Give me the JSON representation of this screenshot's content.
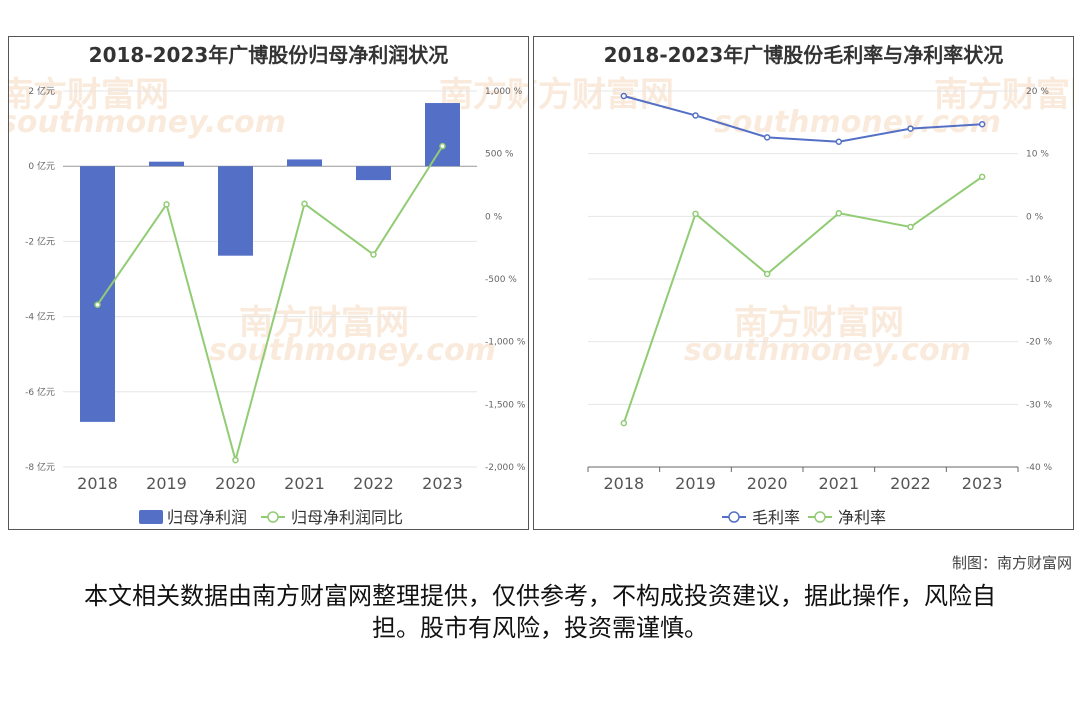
{
  "charts": {
    "left": {
      "title": "2018-2023年广博股份归母净利润状况",
      "legend": {
        "bar": "归母净利润",
        "line": "归母净利润同比"
      }
    },
    "right": {
      "title": "2018-2023年广博股份毛利率与净利率状况",
      "legend": {
        "gross": "毛利率",
        "net": "净利率"
      }
    }
  },
  "watermark": {
    "cn": "南方财富网",
    "en": "southmoney.com"
  },
  "credit": "制图：南方财富网",
  "disclaimer": "本文相关数据由南方财富网整理提供，仅供参考，不构成投资建议，据此操作，风险自担。股市有风险，投资需谨慎。",
  "colors": {
    "bar": "#5470c6",
    "line_green": "#91cc75",
    "line_blue": "#5470c6"
  },
  "chart_data": [
    {
      "type": "bar",
      "title": "2018-2023年广博股份归母净利润状况",
      "categories": [
        "2018",
        "2019",
        "2020",
        "2021",
        "2022",
        "2023"
      ],
      "series": [
        {
          "name": "归母净利润",
          "type": "bar",
          "axis": "left",
          "unit": "亿元",
          "values": [
            -6.8,
            0.12,
            -2.38,
            0.18,
            -0.37,
            1.68
          ]
        },
        {
          "name": "归母净利润同比",
          "type": "line",
          "axis": "right",
          "unit": "%",
          "values": [
            -705,
            95,
            -1945,
            100,
            -305,
            560
          ]
        }
      ],
      "y_left": {
        "min": -8,
        "max": 2,
        "ticks": [
          2,
          0,
          -2,
          -4,
          -6,
          -8
        ],
        "tick_labels": [
          "2 亿元",
          "0 亿元",
          "-2 亿元",
          "-4 亿元",
          "-6 亿元",
          "-8 亿元"
        ]
      },
      "y_right": {
        "min": -2000,
        "max": 1000,
        "ticks": [
          1000,
          500,
          0,
          -500,
          -1000,
          -1500,
          -2000
        ],
        "tick_labels": [
          "1,000 %",
          "500 %",
          "0 %",
          "-500 %",
          "-1,000 %",
          "-1,500 %",
          "-2,000 %"
        ]
      },
      "legend_position": "bottom",
      "grid": true
    },
    {
      "type": "line",
      "title": "2018-2023年广博股份毛利率与净利率状况",
      "categories": [
        "2018",
        "2019",
        "2020",
        "2021",
        "2022",
        "2023"
      ],
      "series": [
        {
          "name": "毛利率",
          "values": [
            19.2,
            16.1,
            12.6,
            11.9,
            14.0,
            14.7
          ]
        },
        {
          "name": "净利率",
          "values": [
            -33.0,
            0.4,
            -9.2,
            0.5,
            -1.7,
            6.3
          ]
        }
      ],
      "y_right": {
        "min": -40,
        "max": 20,
        "ticks": [
          20,
          10,
          0,
          -10,
          -20,
          -30,
          -40
        ],
        "tick_labels": [
          "20 %",
          "10 %",
          "0 %",
          "-10 %",
          "-20 %",
          "-30 %",
          "-40 %"
        ]
      },
      "legend_position": "bottom",
      "grid": true
    }
  ]
}
